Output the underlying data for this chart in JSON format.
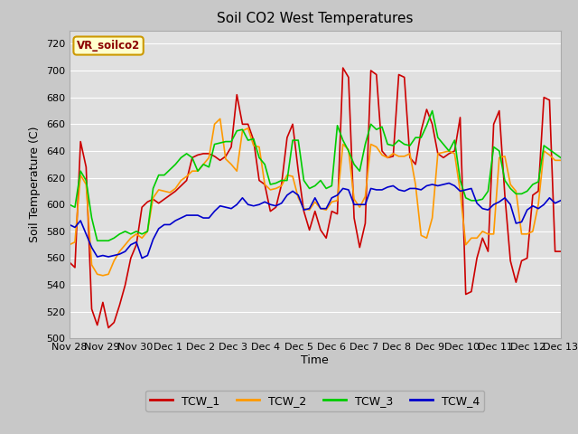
{
  "title": "Soil CO2 West Temperatures",
  "xlabel": "Time",
  "ylabel": "Soil Temperature (C)",
  "annotation": "VR_soilco2",
  "ylim": [
    500,
    730
  ],
  "yticks": [
    500,
    520,
    540,
    560,
    580,
    600,
    620,
    640,
    660,
    680,
    700,
    720
  ],
  "xtick_labels": [
    "Nov 28",
    "Nov 29",
    "Nov 30",
    "Dec 1",
    "Dec 2",
    "Dec 3",
    "Dec 4",
    "Dec 5",
    "Dec 6",
    "Dec 7",
    "Dec 8",
    "Dec 9",
    "Dec 10",
    "Dec 11",
    "Dec 12",
    "Dec 13"
  ],
  "colors": {
    "TCW_1": "#cc0000",
    "TCW_2": "#ff9900",
    "TCW_3": "#00cc00",
    "TCW_4": "#0000cc"
  },
  "fig_bg": "#c8c8c8",
  "plot_bg": "#e0e0e0",
  "grid_color": "#ffffff",
  "linewidth": 1.2,
  "TCW_1": [
    557,
    553,
    647,
    628,
    522,
    510,
    527,
    508,
    512,
    525,
    540,
    560,
    570,
    598,
    602,
    604,
    601,
    604,
    607,
    610,
    614,
    618,
    635,
    637,
    638,
    638,
    636,
    633,
    636,
    643,
    682,
    660,
    660,
    648,
    618,
    615,
    595,
    598,
    615,
    650,
    660,
    625,
    595,
    581,
    595,
    581,
    575,
    595,
    593,
    702,
    695,
    590,
    568,
    586,
    700,
    697,
    640,
    635,
    636,
    697,
    695,
    635,
    630,
    655,
    671,
    660,
    638,
    635,
    638,
    640,
    665,
    533,
    535,
    560,
    575,
    565,
    660,
    670,
    607,
    558,
    542,
    558,
    560,
    607,
    610,
    680,
    678,
    565,
    565
  ],
  "TCW_2": [
    570,
    572,
    622,
    615,
    555,
    548,
    547,
    548,
    558,
    565,
    570,
    575,
    578,
    575,
    580,
    605,
    611,
    610,
    609,
    612,
    618,
    621,
    625,
    625,
    630,
    635,
    660,
    664,
    634,
    630,
    625,
    655,
    657,
    644,
    643,
    615,
    611,
    612,
    614,
    622,
    621,
    605,
    597,
    596,
    602,
    597,
    596,
    602,
    603,
    645,
    641,
    604,
    598,
    606,
    645,
    643,
    637,
    635,
    638,
    636,
    636,
    638,
    615,
    577,
    575,
    590,
    638,
    639,
    640,
    638,
    610,
    570,
    575,
    575,
    580,
    578,
    578,
    635,
    636,
    615,
    610,
    578,
    578,
    580,
    600,
    640,
    637,
    633,
    633
  ],
  "TCW_3": [
    600,
    598,
    625,
    618,
    590,
    573,
    573,
    573,
    575,
    578,
    580,
    578,
    580,
    578,
    580,
    612,
    622,
    622,
    626,
    630,
    635,
    638,
    635,
    625,
    630,
    628,
    645,
    646,
    647,
    647,
    655,
    656,
    648,
    649,
    635,
    630,
    615,
    616,
    618,
    618,
    648,
    648,
    618,
    612,
    614,
    618,
    612,
    614,
    659,
    648,
    640,
    630,
    625,
    645,
    660,
    656,
    658,
    645,
    644,
    648,
    645,
    644,
    650,
    650,
    659,
    670,
    650,
    645,
    640,
    648,
    618,
    605,
    603,
    603,
    604,
    610,
    643,
    640,
    618,
    612,
    608,
    608,
    610,
    615,
    617,
    644,
    641,
    638,
    635
  ],
  "TCW_4": [
    585,
    583,
    588,
    578,
    568,
    561,
    562,
    561,
    562,
    563,
    565,
    570,
    572,
    560,
    562,
    574,
    582,
    585,
    585,
    588,
    590,
    592,
    592,
    592,
    590,
    590,
    595,
    599,
    598,
    597,
    600,
    605,
    600,
    599,
    600,
    602,
    600,
    599,
    601,
    607,
    610,
    607,
    596,
    597,
    605,
    597,
    597,
    605,
    607,
    612,
    611,
    600,
    600,
    600,
    612,
    611,
    611,
    613,
    614,
    611,
    610,
    612,
    612,
    611,
    614,
    615,
    614,
    615,
    616,
    614,
    610,
    611,
    612,
    601,
    597,
    596,
    600,
    602,
    605,
    600,
    586,
    587,
    596,
    599,
    597,
    600,
    605,
    601,
    603
  ]
}
